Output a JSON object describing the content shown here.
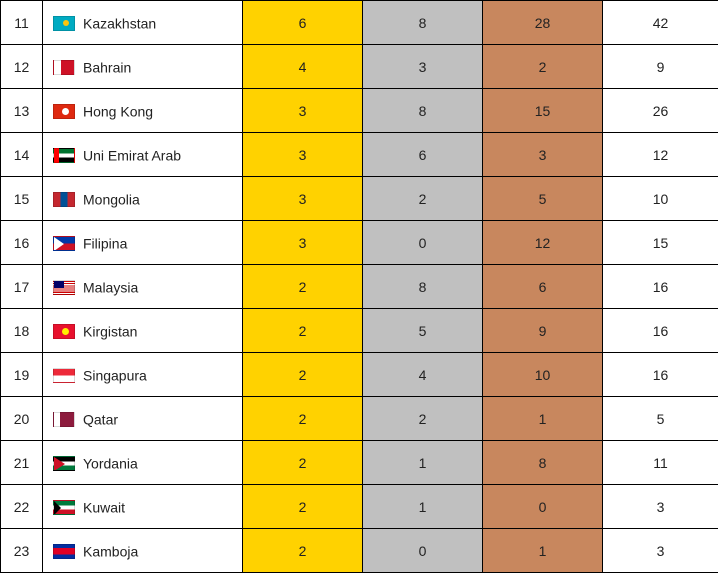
{
  "colors": {
    "gold": "#ffd200",
    "silver": "#c0c0c0",
    "bronze": "#c8875e",
    "border": "#000000",
    "text": "#222222",
    "bg": "#ffffff"
  },
  "columns": [
    "rank",
    "country",
    "gold",
    "silver",
    "bronze",
    "total"
  ],
  "rows": [
    {
      "rank": 11,
      "flag": "kz",
      "country": "Kazakhstan",
      "gold": 6,
      "silver": 8,
      "bronze": 28,
      "total": 42
    },
    {
      "rank": 12,
      "flag": "bh",
      "country": "Bahrain",
      "gold": 4,
      "silver": 3,
      "bronze": 2,
      "total": 9
    },
    {
      "rank": 13,
      "flag": "hk",
      "country": "Hong Kong",
      "gold": 3,
      "silver": 8,
      "bronze": 15,
      "total": 26
    },
    {
      "rank": 14,
      "flag": "ae",
      "country": "Uni Emirat Arab",
      "gold": 3,
      "silver": 6,
      "bronze": 3,
      "total": 12
    },
    {
      "rank": 15,
      "flag": "mn",
      "country": "Mongolia",
      "gold": 3,
      "silver": 2,
      "bronze": 5,
      "total": 10
    },
    {
      "rank": 16,
      "flag": "ph",
      "country": "Filipina",
      "gold": 3,
      "silver": 0,
      "bronze": 12,
      "total": 15
    },
    {
      "rank": 17,
      "flag": "my",
      "country": "Malaysia",
      "gold": 2,
      "silver": 8,
      "bronze": 6,
      "total": 16
    },
    {
      "rank": 18,
      "flag": "kg",
      "country": "Kirgistan",
      "gold": 2,
      "silver": 5,
      "bronze": 9,
      "total": 16
    },
    {
      "rank": 19,
      "flag": "sg",
      "country": "Singapura",
      "gold": 2,
      "silver": 4,
      "bronze": 10,
      "total": 16
    },
    {
      "rank": 20,
      "flag": "qa",
      "country": "Qatar",
      "gold": 2,
      "silver": 2,
      "bronze": 1,
      "total": 5
    },
    {
      "rank": 21,
      "flag": "jo",
      "country": "Yordania",
      "gold": 2,
      "silver": 1,
      "bronze": 8,
      "total": 11
    },
    {
      "rank": 22,
      "flag": "kw",
      "country": "Kuwait",
      "gold": 2,
      "silver": 1,
      "bronze": 0,
      "total": 3
    },
    {
      "rank": 23,
      "flag": "kh",
      "country": "Kamboja",
      "gold": 2,
      "silver": 0,
      "bronze": 1,
      "total": 3
    }
  ]
}
